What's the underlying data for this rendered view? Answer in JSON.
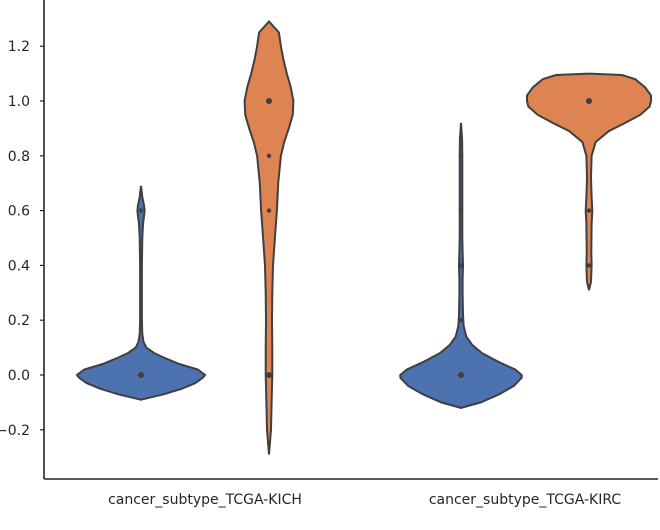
{
  "chart_data": {
    "type": "violin",
    "title": "",
    "xlabel": "",
    "ylabel": "",
    "ylim": [
      -0.38,
      1.38
    ],
    "yticks": [
      -0.2,
      0.0,
      0.2,
      0.4,
      0.6,
      0.8,
      1.0,
      1.2
    ],
    "ytick_labels": [
      "−0.2",
      "0.0",
      "0.2",
      "0.4",
      "0.6",
      "0.8",
      "1.0",
      "1.2"
    ],
    "grid": false,
    "legend": "none",
    "categories": [
      "cancer_subtype_TCGA-KICH",
      "cancer_subtype_TCGA-KIRC"
    ],
    "series": [
      {
        "color": "#4c72b0",
        "violins": [
          {
            "category": "cancer_subtype_TCGA-KICH",
            "points": [
              0.0,
              0.6
            ],
            "density": [
              [
                -0.09,
                0
              ],
              [
                -0.07,
                0.35
              ],
              [
                -0.05,
                0.62
              ],
              [
                -0.03,
                0.82
              ],
              [
                -0.01,
                0.94
              ],
              [
                0.0,
                0.97
              ],
              [
                0.02,
                0.86
              ],
              [
                0.04,
                0.58
              ],
              [
                0.06,
                0.38
              ],
              [
                0.08,
                0.2
              ],
              [
                0.1,
                0.08
              ],
              [
                0.12,
                0.04
              ],
              [
                0.15,
                0.02
              ],
              [
                0.2,
                0.014
              ],
              [
                0.3,
                0.014
              ],
              [
                0.4,
                0.014
              ],
              [
                0.5,
                0.02
              ],
              [
                0.55,
                0.03
              ],
              [
                0.58,
                0.045
              ],
              [
                0.6,
                0.055
              ],
              [
                0.62,
                0.045
              ],
              [
                0.65,
                0.02
              ],
              [
                0.69,
                0
              ]
            ]
          },
          {
            "category": "cancer_subtype_TCGA-KIRC",
            "points": [
              0.0,
              0.2,
              0.4,
              0.6,
              0.8
            ],
            "density": [
              [
                -0.12,
                0
              ],
              [
                -0.1,
                0.3
              ],
              [
                -0.07,
                0.58
              ],
              [
                -0.04,
                0.8
              ],
              [
                -0.01,
                0.92
              ],
              [
                0.0,
                0.92
              ],
              [
                0.02,
                0.82
              ],
              [
                0.05,
                0.55
              ],
              [
                0.08,
                0.32
              ],
              [
                0.11,
                0.17
              ],
              [
                0.14,
                0.08
              ],
              [
                0.18,
                0.04
              ],
              [
                0.22,
                0.03
              ],
              [
                0.3,
                0.025
              ],
              [
                0.35,
                0.025
              ],
              [
                0.4,
                0.03
              ],
              [
                0.45,
                0.025
              ],
              [
                0.5,
                0.02
              ],
              [
                0.6,
                0.02
              ],
              [
                0.7,
                0.02
              ],
              [
                0.8,
                0.02
              ],
              [
                0.86,
                0.016
              ],
              [
                0.92,
                0
              ]
            ]
          }
        ]
      },
      {
        "color": "#dd8452",
        "violins": [
          {
            "category": "cancer_subtype_TCGA-KICH",
            "points": [
              0.0,
              0.6,
              0.8,
              1.0
            ],
            "density": [
              [
                -0.29,
                0
              ],
              [
                -0.2,
                0.03
              ],
              [
                -0.1,
                0.04
              ],
              [
                0.0,
                0.05
              ],
              [
                0.1,
                0.05
              ],
              [
                0.2,
                0.045
              ],
              [
                0.3,
                0.05
              ],
              [
                0.4,
                0.06
              ],
              [
                0.5,
                0.09
              ],
              [
                0.6,
                0.12
              ],
              [
                0.7,
                0.14
              ],
              [
                0.8,
                0.18
              ],
              [
                0.85,
                0.23
              ],
              [
                0.9,
                0.3
              ],
              [
                0.95,
                0.36
              ],
              [
                1.0,
                0.37
              ],
              [
                1.05,
                0.33
              ],
              [
                1.1,
                0.27
              ],
              [
                1.15,
                0.22
              ],
              [
                1.2,
                0.18
              ],
              [
                1.25,
                0.15
              ],
              [
                1.29,
                0
              ]
            ]
          },
          {
            "category": "cancer_subtype_TCGA-KIRC",
            "points": [
              0.4,
              0.6,
              1.0
            ],
            "density": [
              [
                0.31,
                0
              ],
              [
                0.34,
                0.03
              ],
              [
                0.4,
                0.04
              ],
              [
                0.45,
                0.035
              ],
              [
                0.55,
                0.04
              ],
              [
                0.6,
                0.05
              ],
              [
                0.65,
                0.04
              ],
              [
                0.72,
                0.03
              ],
              [
                0.8,
                0.04
              ],
              [
                0.85,
                0.1
              ],
              [
                0.89,
                0.3
              ],
              [
                0.92,
                0.55
              ],
              [
                0.95,
                0.78
              ],
              [
                0.98,
                0.92
              ],
              [
                1.0,
                0.94
              ],
              [
                1.02,
                0.94
              ],
              [
                1.05,
                0.85
              ],
              [
                1.08,
                0.7
              ],
              [
                1.095,
                0.5
              ],
              [
                1.1,
                0
              ]
            ]
          }
        ]
      }
    ]
  }
}
